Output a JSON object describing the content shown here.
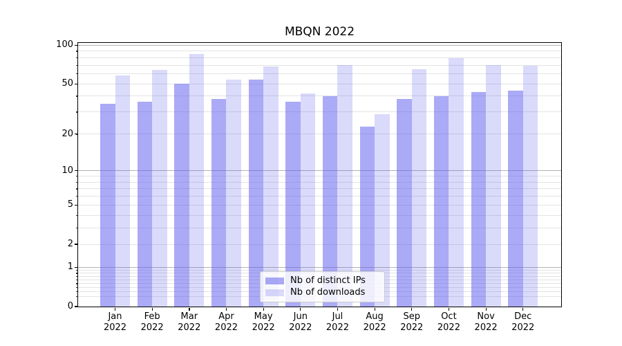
{
  "title": "MBQN 2022",
  "colors": {
    "bar_distinct_ips": "rgba(85,85,238,0.5)",
    "bar_downloads": "rgba(85,85,238,0.22)",
    "grid_decade": "#b2b2b2",
    "grid_minor": "#e3e3e3",
    "spine": "#000000",
    "tick": "#000000",
    "legend_bg": "rgba(255,255,255,0.8)",
    "legend_border": "#cccccc",
    "background": "#ffffff"
  },
  "chart_data": {
    "type": "bar",
    "title": "MBQN 2022",
    "categories": [
      "Jan 2022",
      "Feb 2022",
      "Mar 2022",
      "Apr 2022",
      "May 2022",
      "Jun 2022",
      "Jul 2022",
      "Aug 2022",
      "Sep 2022",
      "Oct 2022",
      "Nov 2022",
      "Dec 2022"
    ],
    "series": [
      {
        "name": "Nb of distinct IPs",
        "values": [
          35,
          36,
          50,
          38,
          54,
          36,
          40,
          23,
          38,
          40,
          43,
          44
        ],
        "color": "rgba(85,85,238,0.5)"
      },
      {
        "name": "Nb of downloads",
        "values": [
          58,
          64,
          85,
          54,
          68,
          42,
          70,
          29,
          65,
          79,
          70,
          69
        ],
        "color": "rgba(85,85,238,0.22)"
      }
    ],
    "xlabel": "",
    "ylabel": "",
    "yscale": "log1p",
    "ylim": [
      0,
      104
    ],
    "y_ticks": [
      0,
      1,
      2,
      5,
      10,
      20,
      50,
      100
    ],
    "y_tick_labels": [
      "0",
      "1",
      "2",
      "5",
      "10",
      "20",
      "50",
      "100"
    ],
    "grid_decade_values": [
      1,
      10,
      100
    ],
    "grid_minor_values": [
      0.2,
      0.3,
      0.4,
      0.5,
      0.6,
      0.7,
      0.8,
      0.9,
      2,
      3,
      4,
      5,
      6,
      7,
      8,
      9,
      20,
      30,
      40,
      50,
      60,
      70,
      80,
      90
    ],
    "grid": "both",
    "legend_position": "lower center"
  }
}
